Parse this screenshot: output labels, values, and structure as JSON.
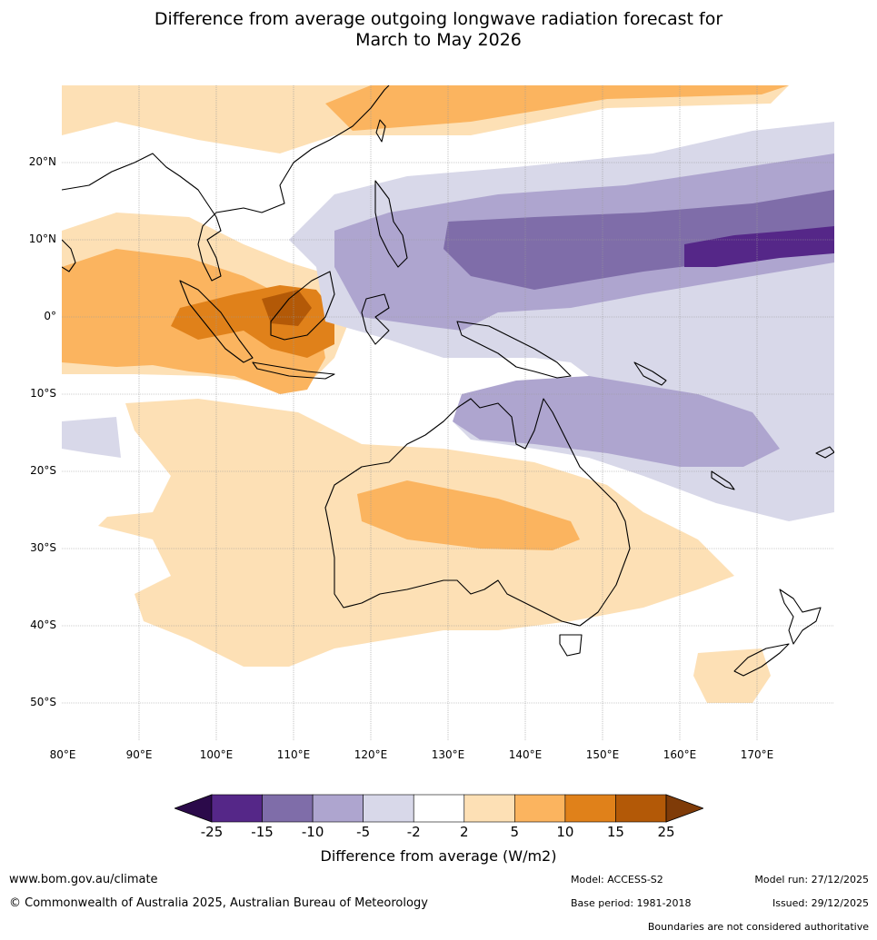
{
  "title": {
    "line1": "Difference from average outgoing longwave radiation forecast for",
    "line2": "March to May 2026"
  },
  "map": {
    "region": "Australia, Maritime Continent and western Pacific",
    "lat_labels": [
      "20°N",
      "10°N",
      "0°",
      "10°S",
      "20°S",
      "30°S",
      "40°S",
      "50°S"
    ],
    "lon_labels": [
      "80°E",
      "90°E",
      "100°E",
      "110°E",
      "120°E",
      "130°E",
      "140°E",
      "150°E",
      "160°E",
      "170°E"
    ]
  },
  "colorbar": {
    "ticks": [
      "-25",
      "-15",
      "-10",
      "-5",
      "-2",
      "2",
      "5",
      "10",
      "15",
      "25"
    ],
    "colors": [
      "#552788",
      "#7f6da9",
      "#aea5cf",
      "#d8d8e9",
      "#ffffff",
      "#fde0b5",
      "#fbb45f",
      "#e0811a",
      "#b35907"
    ],
    "under_color": "#2b0a4a",
    "over_color": "#7f3b08",
    "label": "Difference from average (W/m2)"
  },
  "footer": {
    "website": "www.bom.gov.au/climate",
    "copyright": "© Commonwealth of Australia 2025, Australian Bureau of Meteorology",
    "model": "Model: ACCESS-S2",
    "base_period": "Base period: 1981-2018",
    "model_run": "Model run: 27/12/2025",
    "issued": "Issued: 29/12/2025",
    "disclaimer": "Boundaries are not considered authoritative"
  }
}
